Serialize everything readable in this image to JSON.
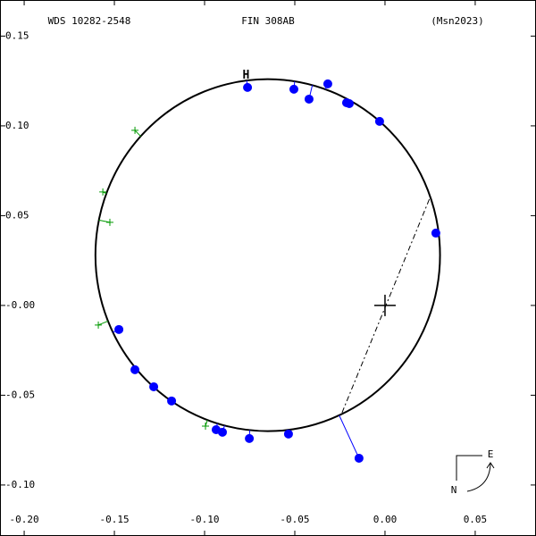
{
  "chart_data": {
    "type": "scatter",
    "title": "FIN 308AB",
    "subtitle": "WDS 10282-2548",
    "annotation": "(Msn2023)",
    "xlim": [
      -0.2134,
      0.0837
    ],
    "ylim": [
      -0.1284,
      0.1701
    ],
    "xticks": [
      {
        "value": -0.2,
        "label": "-0.20"
      },
      {
        "value": -0.15,
        "label": "-0.15"
      },
      {
        "value": -0.1,
        "label": "-0.10"
      },
      -0.05,
      {
        "value": 0,
        "label": "0.00"
      },
      0.05
    ],
    "yticks": [
      {
        "value": 0.15,
        "label": "0.15"
      },
      {
        "value": 0.1,
        "label": "0.10"
      },
      0.05,
      {
        "value": 0,
        "label": "-0.00"
      },
      -0.05,
      {
        "value": -0.1,
        "label": "-0.10"
      }
    ],
    "orbit": {
      "cx": -0.065,
      "cy": 0.028,
      "rx": 0.0955,
      "ry": 0.098,
      "color": "#000000"
    },
    "node_line": {
      "x": [
        -0.0238,
        0.0248
      ],
      "y": [
        -0.0597,
        0.0597
      ]
    },
    "primary": {
      "x": 0,
      "y": 0
    },
    "periastron_label": {
      "text": "H",
      "x": -0.077,
      "y": 0.128,
      "color": "#ff0000"
    },
    "compass": {
      "east": "E",
      "north": "N"
    },
    "series": [
      {
        "name": "observations",
        "color": "#0000ff",
        "x": [
          -0.0762,
          -0.0505,
          -0.0421,
          -0.0317,
          -0.0213,
          -0.0198,
          -0.003,
          0.0282,
          -0.1475,
          -0.1386,
          -0.1282,
          -0.1183,
          -0.0936,
          -0.0901,
          -0.0752,
          -0.0535,
          -0.0144
        ],
        "values": [
          0.1214,
          0.1204,
          0.1149,
          0.1234,
          0.1129,
          0.1124,
          0.1025,
          0.0403,
          -0.0134,
          -0.0358,
          -0.0453,
          -0.0532,
          -0.0692,
          -0.0706,
          -0.0741,
          -0.0716,
          -0.0851
        ]
      },
      {
        "name": "other",
        "color": "#009900",
        "x": [
          -0.1386,
          -0.1564,
          -0.1525,
          -0.1589,
          -0.0995
        ],
        "values": [
          0.0975,
          0.0632,
          0.0463,
          -0.0109,
          -0.0672
        ]
      }
    ]
  }
}
